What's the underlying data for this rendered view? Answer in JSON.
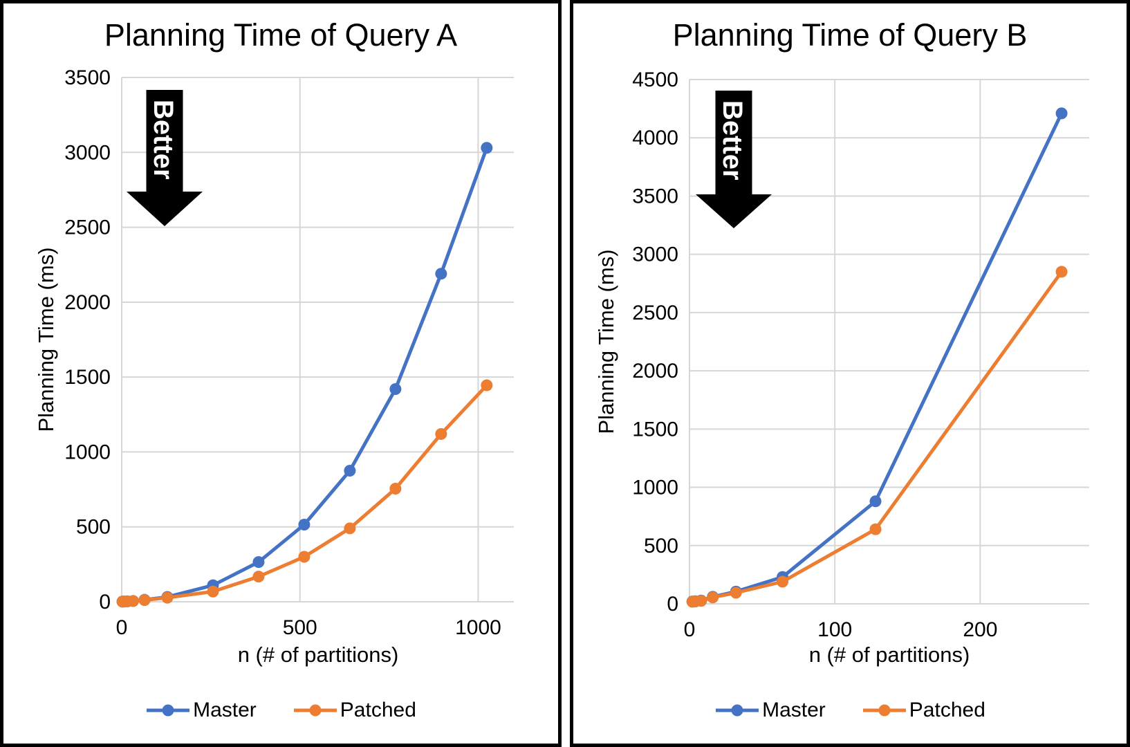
{
  "chart_data": [
    {
      "type": "line",
      "title": "Planning Time of Query A",
      "xlabel": "n (# of partitions)",
      "ylabel": "Planning Time (ms)",
      "annotation": "Better",
      "annotation_meaning": "down-arrow: lower is better",
      "x": [
        2,
        4,
        8,
        16,
        32,
        64,
        128,
        256,
        384,
        512,
        640,
        768,
        896,
        1024
      ],
      "series": [
        {
          "name": "Master",
          "color": "#4472C4",
          "values": [
            1,
            1,
            2,
            3,
            5,
            13,
            32,
            110,
            265,
            515,
            875,
            1420,
            2190,
            3030
          ]
        },
        {
          "name": "Patched",
          "color": "#ED7D31",
          "values": [
            1,
            1,
            2,
            3,
            5,
            11,
            27,
            68,
            168,
            300,
            490,
            755,
            1120,
            1445
          ]
        }
      ],
      "xlim": [
        0,
        1100
      ],
      "ylim": [
        0,
        3500
      ],
      "xticks": [
        0,
        500,
        1000
      ],
      "ytick_step": 500,
      "grid": true,
      "legend_position": "bottom"
    },
    {
      "type": "line",
      "title": "Planning Time of Query B",
      "xlabel": "n (# of partitions)",
      "ylabel": "Planning Time (ms)",
      "annotation": "Better",
      "annotation_meaning": "down-arrow: lower is better",
      "x": [
        2,
        4,
        8,
        16,
        32,
        64,
        128,
        256
      ],
      "series": [
        {
          "name": "Master",
          "color": "#4472C4",
          "values": [
            20,
            22,
            28,
            60,
            105,
            230,
            880,
            4210
          ]
        },
        {
          "name": "Patched",
          "color": "#ED7D31",
          "values": [
            18,
            20,
            25,
            55,
            95,
            190,
            640,
            2850
          ]
        }
      ],
      "xlim": [
        0,
        275
      ],
      "ylim": [
        0,
        4500
      ],
      "xticks": [
        0,
        100,
        200
      ],
      "ytick_step": 500,
      "grid": true,
      "legend_position": "bottom"
    }
  ],
  "colors": {
    "master": "#4472C4",
    "patched": "#ED7D31",
    "gridline": "#D6D6D6",
    "arrow": "#000000",
    "arrow_text": "#FFFFFF",
    "text": "#000000"
  }
}
